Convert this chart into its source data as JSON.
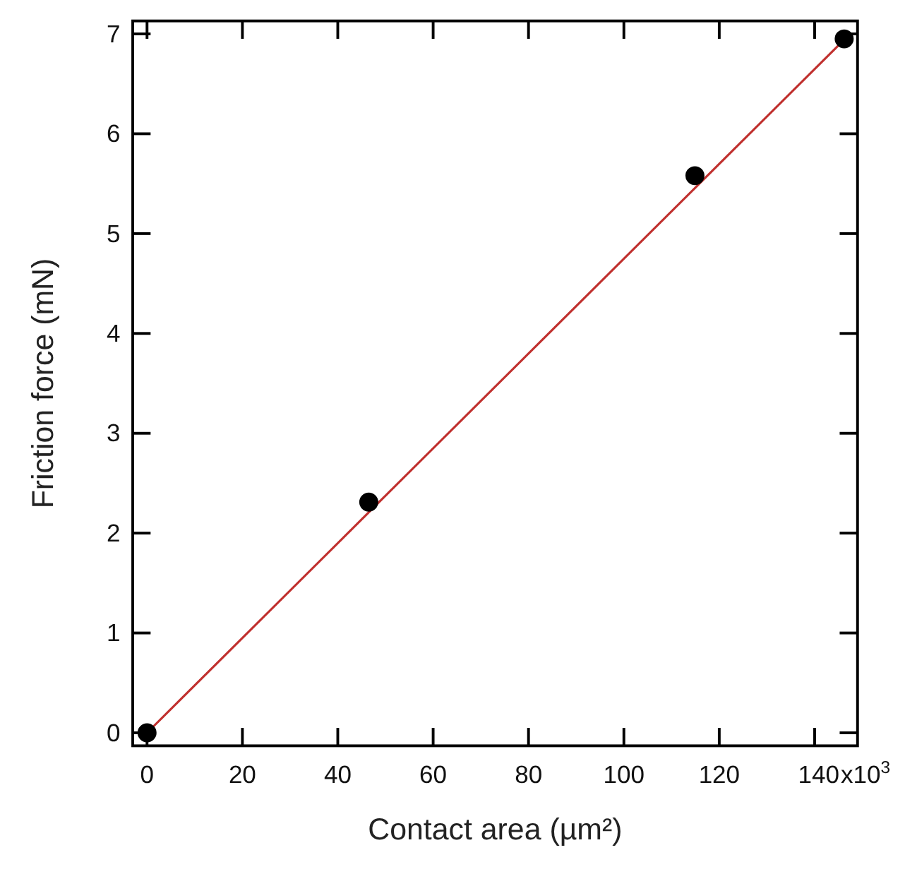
{
  "chart_data": {
    "type": "scatter",
    "xlabel": "Contact area (µm²)",
    "ylabel": "Friction force (mN)",
    "xlim": [
      -3,
      149
    ],
    "ylim": [
      -0.13,
      7.13
    ],
    "xticks": [
      0,
      20,
      40,
      60,
      80,
      100,
      120,
      140
    ],
    "yticks": [
      0,
      1,
      2,
      3,
      4,
      5,
      6,
      7
    ],
    "annotations": [
      "x10$^{3}$"
    ],
    "x": [
      0,
      46.5,
      114.9,
      146.2
    ],
    "series": [
      {
        "type": "line",
        "color": "#c0302e",
        "x": [
          0,
          147
        ],
        "values": [
          0,
          6.98
        ],
        "marker": "none",
        "line_style": "solid"
      },
      {
        "color": "#000000",
        "values": [
          0,
          2.31,
          5.58,
          6.95
        ],
        "marker": "circle"
      }
    ],
    "grid": false
  }
}
